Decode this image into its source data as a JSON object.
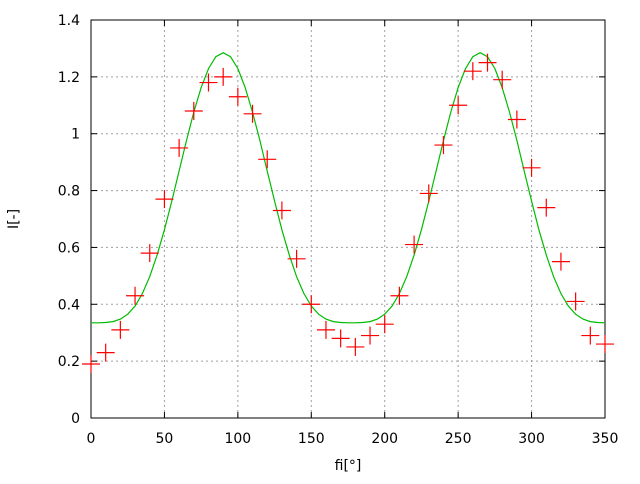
{
  "chart_data": {
    "type": "scatter",
    "xlabel": "fi[°]",
    "ylabel": "I[-]",
    "xlim": [
      0,
      350
    ],
    "ylim": [
      0,
      1.4
    ],
    "xticks": [
      0,
      50,
      100,
      150,
      200,
      250,
      300,
      350
    ],
    "yticks": [
      0,
      0.2,
      0.4,
      0.6,
      0.8,
      1,
      1.2,
      1.4
    ],
    "grid": true,
    "legend": "none",
    "series": [
      {
        "style": "points",
        "marker": "plus",
        "color": "#ff0000",
        "x": [
          0,
          10,
          20,
          30,
          40,
          50,
          60,
          70,
          80,
          90,
          100,
          110,
          120,
          130,
          140,
          150,
          160,
          170,
          180,
          190,
          200,
          210,
          220,
          230,
          240,
          250,
          260,
          270,
          280,
          290,
          300,
          310,
          320,
          330,
          340,
          350
        ],
        "y": [
          0.19,
          0.23,
          0.31,
          0.43,
          0.58,
          0.77,
          0.95,
          1.08,
          1.18,
          1.2,
          1.13,
          1.07,
          0.91,
          0.73,
          0.56,
          0.4,
          0.31,
          0.28,
          0.25,
          0.29,
          0.33,
          0.43,
          0.61,
          0.79,
          0.96,
          1.1,
          1.22,
          1.25,
          1.19,
          1.05,
          0.88,
          0.74,
          0.55,
          0.41,
          0.29,
          0.26
        ]
      },
      {
        "style": "line",
        "color": "#00bb00",
        "x_step": 5,
        "y_half_period": [
          0.335,
          0.335,
          0.336,
          0.339,
          0.348,
          0.365,
          0.394,
          0.438,
          0.497,
          0.573,
          0.662,
          0.763,
          0.869,
          0.976,
          1.076,
          1.162,
          1.229,
          1.271,
          1.285,
          1.271,
          1.229,
          1.162,
          1.076,
          0.976,
          0.869,
          0.763,
          0.662,
          0.573,
          0.497,
          0.438,
          0.394,
          0.365,
          0.348,
          0.339,
          0.336,
          0.335
        ]
      }
    ]
  }
}
